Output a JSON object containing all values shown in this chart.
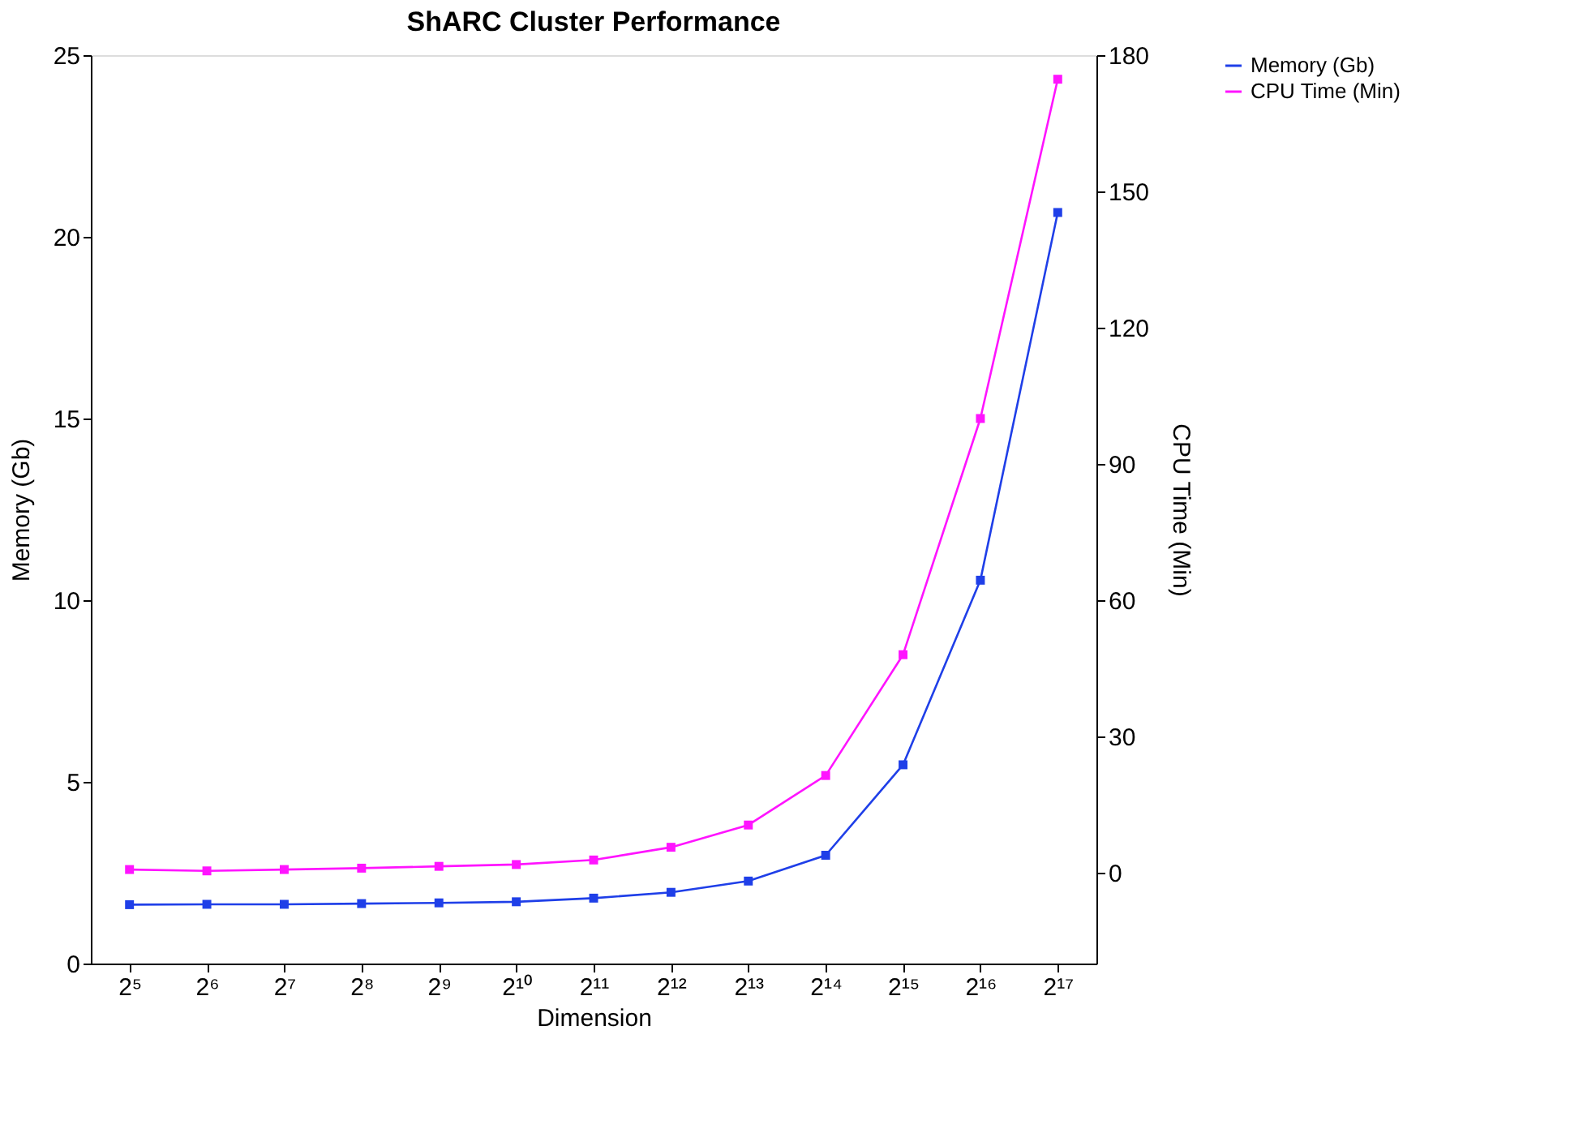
{
  "chart_data": {
    "type": "line",
    "title": "ShARC Cluster Performance",
    "xlabel": "Dimension",
    "ylabel": "Memory (Gb)",
    "y2label": "CPU Time (Min)",
    "categories": [
      "2⁵",
      "2⁶",
      "2⁷",
      "2⁸",
      "2⁹",
      "2¹⁰",
      "2¹¹",
      "2¹²",
      "2¹³",
      "2¹⁴",
      "2¹⁵",
      "2¹⁶",
      "2¹⁷"
    ],
    "series": [
      {
        "name": "Memory (Gb)",
        "color": "#1f3fe8",
        "values": [
          1.62,
          1.63,
          1.63,
          1.65,
          1.67,
          1.7,
          1.8,
          1.96,
          2.27,
          2.98,
          5.47,
          10.55,
          20.67
        ]
      },
      {
        "name": "CPU Time (Min)",
        "color": "#ff14ff",
        "axis": "y2",
        "values": [
          0.7,
          0.4,
          0.7,
          1.0,
          1.4,
          1.8,
          2.8,
          5.6,
          10.5,
          21.4,
          48,
          100,
          174.7
        ]
      }
    ],
    "ylim": [
      0,
      25
    ],
    "yticks": [
      0,
      5,
      10,
      15,
      20,
      25
    ],
    "y2lim": [
      -20,
      180
    ],
    "y2ticks": [
      0,
      30,
      60,
      90,
      120,
      150,
      180
    ],
    "marker": "square",
    "line_style": "solid",
    "grid": false,
    "legend": "top right"
  }
}
